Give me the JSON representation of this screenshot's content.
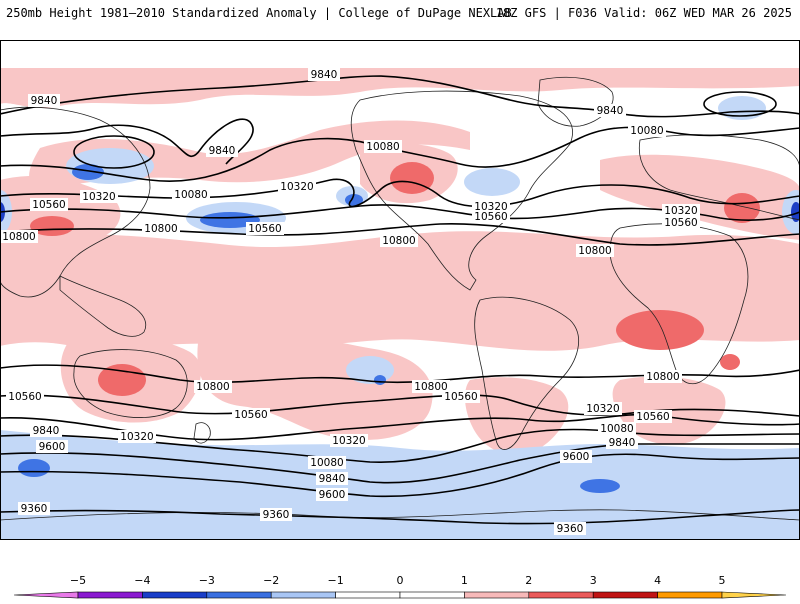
{
  "header": {
    "left_title": "250mb Height 1981–2010 Standardized Anomaly | College of DuPage NEXLAB",
    "right_title": "18Z GFS | F036 Valid: 06Z WED MAR 26 2025"
  },
  "colorbar": {
    "ticks": [
      "−5",
      "−4",
      "−3",
      "−2",
      "−1",
      "0",
      "1",
      "2",
      "3",
      "4",
      "5"
    ],
    "colors": [
      "#e879e8",
      "#8a1ad0",
      "#1a3ec8",
      "#3a6fe0",
      "#a9c6f4",
      "#ffffff",
      "#ffffff",
      "#f7b9b9",
      "#ea5a5a",
      "#c01414",
      "#ff9a00",
      "#ffd24a"
    ]
  },
  "map": {
    "colors": {
      "pos1": "#f9c6c6",
      "pos2": "#ef6a6a",
      "neg1": "#c3d8f7",
      "neg2": "#3f74e4",
      "neg3": "#1d3fc4",
      "land": "#222222",
      "contour": "#000000"
    },
    "contour_labels": [
      {
        "id": "c9840-a",
        "text": "9840"
      },
      {
        "id": "c9840-b",
        "text": "9840"
      },
      {
        "id": "c9840-c",
        "text": "9840"
      },
      {
        "id": "c9840-d",
        "text": "9840"
      },
      {
        "id": "c10080-a",
        "text": "10080"
      },
      {
        "id": "c10080-b",
        "text": "10080"
      },
      {
        "id": "c10080-c",
        "text": "10080"
      },
      {
        "id": "c10320-a",
        "text": "10320"
      },
      {
        "id": "c10320-b",
        "text": "10320"
      },
      {
        "id": "c10320-c",
        "text": "10320"
      },
      {
        "id": "c10320-d",
        "text": "10320"
      },
      {
        "id": "c10560-a",
        "text": "10560"
      },
      {
        "id": "c10560-b",
        "text": "10560"
      },
      {
        "id": "c10560-c",
        "text": "10560"
      },
      {
        "id": "c10560-d",
        "text": "10560"
      },
      {
        "id": "c10800-a",
        "text": "10800"
      },
      {
        "id": "c10800-b",
        "text": "10800"
      },
      {
        "id": "c10800-c",
        "text": "10800"
      },
      {
        "id": "c10800-d",
        "text": "10800"
      },
      {
        "id": "s10800-a",
        "text": "10800"
      },
      {
        "id": "s10800-b",
        "text": "10800"
      },
      {
        "id": "s10800-c",
        "text": "10800"
      },
      {
        "id": "s10560-a",
        "text": "10560"
      },
      {
        "id": "s10560-b",
        "text": "10560"
      },
      {
        "id": "s10560-c",
        "text": "10560"
      },
      {
        "id": "s10560-d",
        "text": "10560"
      },
      {
        "id": "s10320-a",
        "text": "10320"
      },
      {
        "id": "s10320-b",
        "text": "10320"
      },
      {
        "id": "s10320-c",
        "text": "10320"
      },
      {
        "id": "s10080-a",
        "text": "10080"
      },
      {
        "id": "s10080-b",
        "text": "10080"
      },
      {
        "id": "s9840-a",
        "text": "9840"
      },
      {
        "id": "s9840-b",
        "text": "9840"
      },
      {
        "id": "s9840-c",
        "text": "9840"
      },
      {
        "id": "s9600-a",
        "text": "9600"
      },
      {
        "id": "s9600-b",
        "text": "9600"
      },
      {
        "id": "s9600-c",
        "text": "9600"
      },
      {
        "id": "s9360-a",
        "text": "9360"
      },
      {
        "id": "s9360-b",
        "text": "9360"
      },
      {
        "id": "s9360-c",
        "text": "9360"
      }
    ]
  }
}
